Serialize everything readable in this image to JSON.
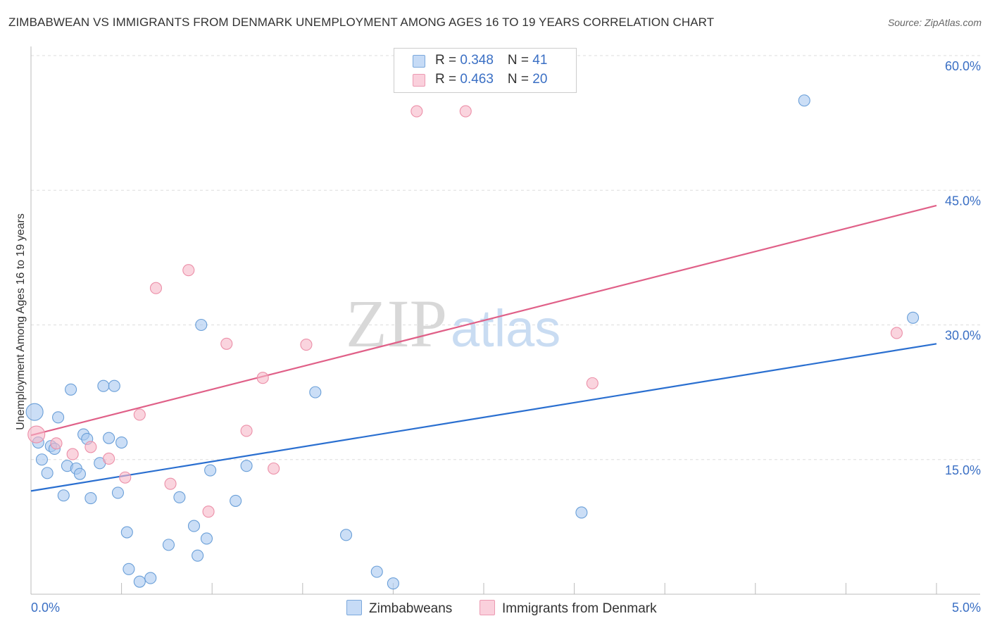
{
  "title": "ZIMBABWEAN VS IMMIGRANTS FROM DENMARK UNEMPLOYMENT AMONG AGES 16 TO 19 YEARS CORRELATION CHART",
  "source": "Source: ZipAtlas.com",
  "watermark": {
    "zip": "ZIP",
    "atlas": "atlas"
  },
  "legend": {
    "rows": [
      {
        "r_label": "R = ",
        "r_value": "0.348",
        "n_label": "N = ",
        "n_value": " 41",
        "color": "#a8c8f0"
      },
      {
        "r_label": "R = ",
        "r_value": "0.463",
        "n_label": "N = ",
        "n_value": "20",
        "color": "#f6b8c8"
      }
    ]
  },
  "bottom_legend": {
    "items": [
      {
        "label": "Zimbabweans",
        "color": "#a8c8f0"
      },
      {
        "label": "Immigrants from Denmark",
        "color": "#f6b8c8"
      }
    ]
  },
  "chart_data": {
    "type": "scatter",
    "title": "ZIMBABWEAN VS IMMIGRANTS FROM DENMARK UNEMPLOYMENT AMONG AGES 16 TO 19 YEARS CORRELATION CHART",
    "xlabel": "",
    "ylabel": "Unemployment Among Ages 16 to 19 years",
    "xlim": [
      0,
      5
    ],
    "ylim": [
      0,
      60
    ],
    "x_tick_labels": [
      "0.0%",
      "5.0%"
    ],
    "y_tick_labels": [
      "15.0%",
      "30.0%",
      "45.0%",
      "60.0%"
    ],
    "y_ticks": [
      15,
      30,
      45,
      60
    ],
    "series": [
      {
        "name": "Zimbabweans",
        "color": "#a8c8f0",
        "stroke": "#6a9fd8",
        "line_color": "#2a6fd0",
        "trend": [
          [
            0,
            11.5
          ],
          [
            5,
            27.9
          ]
        ],
        "points": [
          {
            "x": 0.02,
            "y": 20.3,
            "big": true
          },
          {
            "x": 0.04,
            "y": 16.9
          },
          {
            "x": 0.06,
            "y": 15.0
          },
          {
            "x": 0.09,
            "y": 13.5
          },
          {
            "x": 0.11,
            "y": 16.5
          },
          {
            "x": 0.13,
            "y": 16.2
          },
          {
            "x": 0.15,
            "y": 19.7
          },
          {
            "x": 0.18,
            "y": 11.0
          },
          {
            "x": 0.2,
            "y": 14.3
          },
          {
            "x": 0.22,
            "y": 22.8
          },
          {
            "x": 0.25,
            "y": 14.0
          },
          {
            "x": 0.27,
            "y": 13.4
          },
          {
            "x": 0.29,
            "y": 17.8
          },
          {
            "x": 0.31,
            "y": 17.3
          },
          {
            "x": 0.33,
            "y": 10.7
          },
          {
            "x": 0.38,
            "y": 14.6
          },
          {
            "x": 0.4,
            "y": 23.2
          },
          {
            "x": 0.43,
            "y": 17.4
          },
          {
            "x": 0.46,
            "y": 23.2
          },
          {
            "x": 0.48,
            "y": 11.3
          },
          {
            "x": 0.5,
            "y": 16.9
          },
          {
            "x": 0.53,
            "y": 6.9
          },
          {
            "x": 0.54,
            "y": 2.8
          },
          {
            "x": 0.6,
            "y": 1.4
          },
          {
            "x": 0.66,
            "y": 1.8
          },
          {
            "x": 0.76,
            "y": 5.5
          },
          {
            "x": 0.82,
            "y": 10.8
          },
          {
            "x": 0.9,
            "y": 7.6
          },
          {
            "x": 0.92,
            "y": 4.3
          },
          {
            "x": 0.94,
            "y": 30.0
          },
          {
            "x": 0.97,
            "y": 6.2
          },
          {
            "x": 0.99,
            "y": 13.8
          },
          {
            "x": 1.13,
            "y": 10.4
          },
          {
            "x": 1.19,
            "y": 14.3
          },
          {
            "x": 1.57,
            "y": 22.5
          },
          {
            "x": 1.74,
            "y": 6.6
          },
          {
            "x": 1.91,
            "y": 2.5
          },
          {
            "x": 2.0,
            "y": 1.2
          },
          {
            "x": 3.04,
            "y": 9.1
          },
          {
            "x": 4.27,
            "y": 55.0
          },
          {
            "x": 4.87,
            "y": 30.8
          }
        ]
      },
      {
        "name": "Immigrants from Denmark",
        "color": "#f6b8c8",
        "stroke": "#ec8fa8",
        "line_color": "#e06088",
        "trend": [
          [
            0,
            17.7
          ],
          [
            5,
            43.3
          ]
        ],
        "points": [
          {
            "x": 0.03,
            "y": 17.8,
            "big": true
          },
          {
            "x": 0.14,
            "y": 16.8
          },
          {
            "x": 0.23,
            "y": 15.6
          },
          {
            "x": 0.33,
            "y": 16.4
          },
          {
            "x": 0.43,
            "y": 15.1
          },
          {
            "x": 0.52,
            "y": 13.0
          },
          {
            "x": 0.6,
            "y": 20.0
          },
          {
            "x": 0.69,
            "y": 34.1
          },
          {
            "x": 0.77,
            "y": 12.3
          },
          {
            "x": 0.87,
            "y": 36.1
          },
          {
            "x": 0.98,
            "y": 9.2
          },
          {
            "x": 1.08,
            "y": 27.9
          },
          {
            "x": 1.19,
            "y": 18.2
          },
          {
            "x": 1.28,
            "y": 24.1
          },
          {
            "x": 1.34,
            "y": 14.0
          },
          {
            "x": 1.52,
            "y": 27.8
          },
          {
            "x": 2.13,
            "y": 53.8
          },
          {
            "x": 2.4,
            "y": 53.8
          },
          {
            "x": 3.1,
            "y": 23.5
          },
          {
            "x": 4.78,
            "y": 29.1
          }
        ]
      }
    ]
  }
}
